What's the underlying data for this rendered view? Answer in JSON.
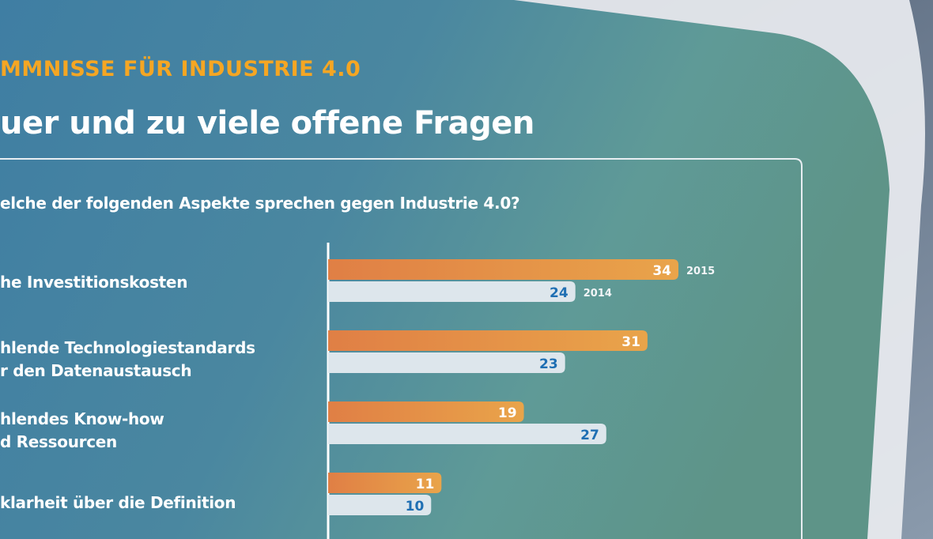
{
  "header": {
    "kicker": "MMNISSE FÜR INDUSTRIE 4.0",
    "title": "uer und zu viele offene Fragen"
  },
  "question": "elche der folgenden Aspekte sprechen gegen Industrie 4.0?",
  "colors": {
    "series_2015": "#e8893f",
    "series_2014": "#dde6ec",
    "label_2014": "#1f6fb3",
    "panel": "#4f8e99"
  },
  "chart_data": {
    "type": "bar",
    "orientation": "horizontal",
    "title": "uer und zu viele offene Fragen",
    "subtitle": "elche der folgenden Aspekte sprechen gegen Industrie 4.0?",
    "categories": [
      [
        "he Investitionskosten"
      ],
      [
        "hlende Technologiestandards",
        "r den Datenaustausch"
      ],
      [
        "hlendes Know-how",
        "d Ressourcen"
      ],
      [
        "klarheit über die Definition"
      ]
    ],
    "series": [
      {
        "name": "2015",
        "values": [
          34,
          31,
          19,
          11
        ]
      },
      {
        "name": "2014",
        "values": [
          24,
          23,
          27,
          10
        ]
      }
    ],
    "xlim": [
      0,
      34
    ],
    "grid": false,
    "data_labels": true
  }
}
